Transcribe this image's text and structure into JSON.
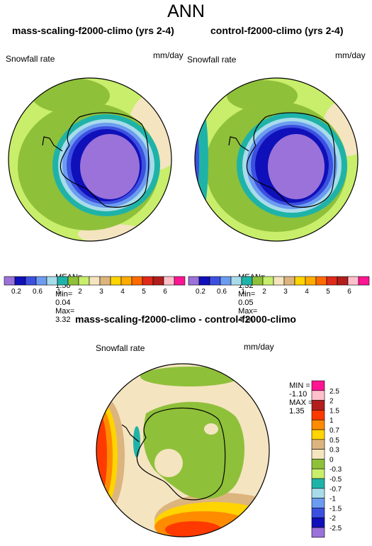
{
  "main_title": "ANN",
  "colors": {
    "palette": [
      "#9b72d9",
      "#0f10b9",
      "#3c50e0",
      "#6c9cf0",
      "#a8dcea",
      "#1fb3a8",
      "#8fc03a",
      "#c8ee6c",
      "#f4e4c0",
      "#dcb47e",
      "#ffd400",
      "#ffab00",
      "#ff6a00",
      "#e12a1a",
      "#b21d1d",
      "#ffc0cb",
      "#ff1493"
    ],
    "diff_palette_top_to_bottom": [
      "#ff1493",
      "#ffc0cb",
      "#b21d1d",
      "#ff3a00",
      "#ff8c00",
      "#ffd400",
      "#dcb47e",
      "#f4e4c0",
      "#8fc03a",
      "#c8ee6c",
      "#1fb3a8",
      "#a8dcea",
      "#6c9cf0",
      "#3c50e0",
      "#0f10b9",
      "#9b72d9"
    ]
  },
  "chart_data": [
    {
      "type": "heatmap",
      "title": "mass-scaling-f2000-climo (yrs 2-4)",
      "variable": "Snowfall rate",
      "units": "mm/day",
      "projection": "south polar stereographic",
      "stats": {
        "mean": "1.50",
        "min": "0.04",
        "max": "3.32"
      },
      "stats_labels": {
        "mean": "MEAN=",
        "min": "Min=",
        "max": "Max="
      },
      "colorbar_ticks": [
        "0.2",
        "0.6",
        "1",
        "2",
        "3",
        "4",
        "5",
        "6"
      ]
    },
    {
      "type": "heatmap",
      "title": "control-f2000-climo (yrs 2-4)",
      "variable": "Snowfall rate",
      "units": "mm/day",
      "projection": "south polar stereographic",
      "stats": {
        "mean": "1.32",
        "min": "0.05",
        "max": "4.14"
      },
      "stats_labels": {
        "mean": "MEAN=",
        "min": "Min=",
        "max": "Max="
      },
      "colorbar_ticks": [
        "0.2",
        "0.6",
        "1",
        "2",
        "3",
        "4",
        "5",
        "6"
      ]
    },
    {
      "type": "heatmap",
      "title": "mass-scaling-f2000-climo - control-f2000-climo",
      "variable": "Snowfall rate",
      "units": "mm/day",
      "projection": "south polar stereographic",
      "stats": {
        "min": "-1.10",
        "max": "1.35"
      },
      "stats_labels": {
        "min": "MIN =",
        "max": "MAX ="
      },
      "colorbar_ticks": [
        "2.5",
        "2",
        "1.5",
        "1",
        "0.7",
        "0.5",
        "0.3",
        "0",
        "-0.3",
        "-0.5",
        "-0.7",
        "-1",
        "-1.5",
        "-2",
        "-2.5"
      ]
    }
  ]
}
